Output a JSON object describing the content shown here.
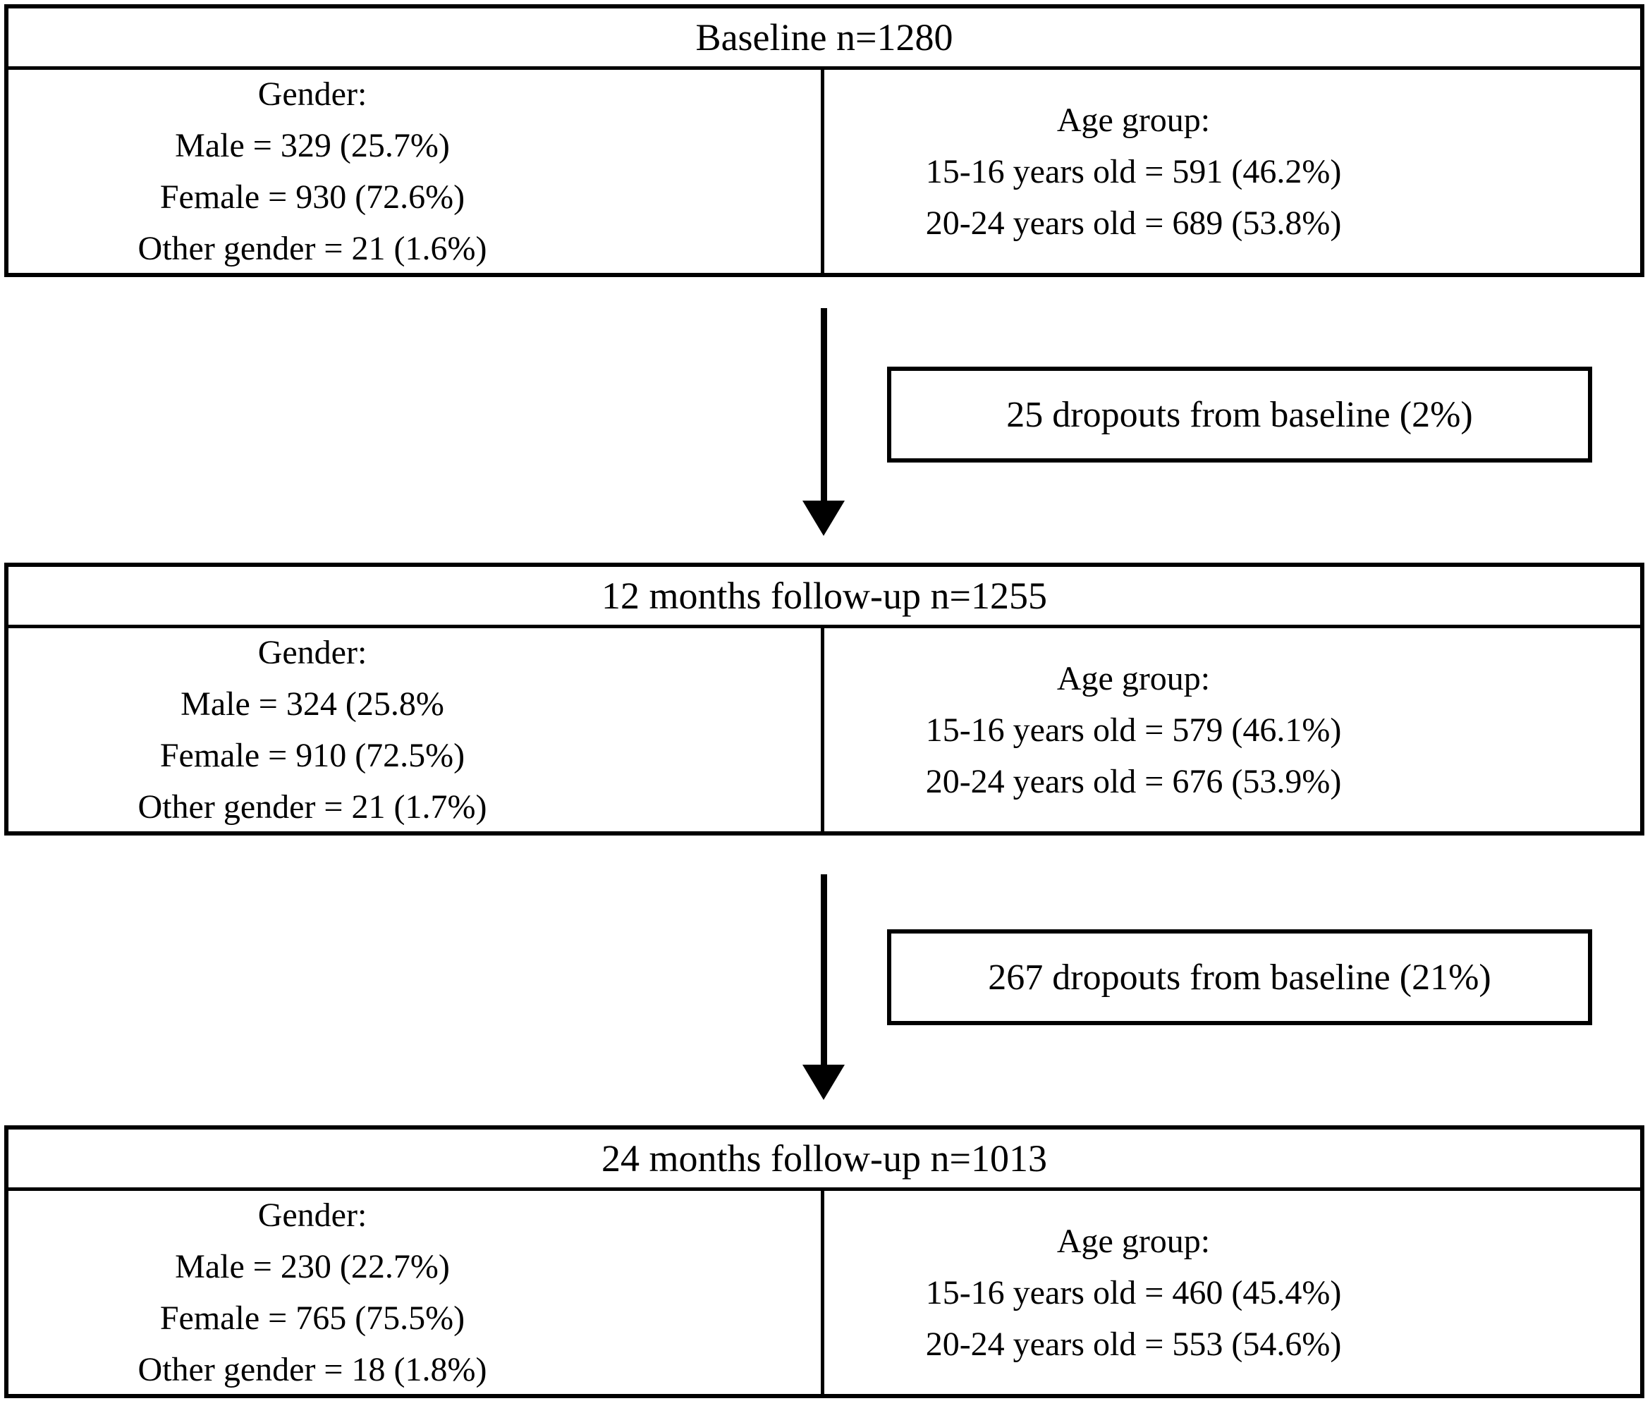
{
  "colors": {
    "border": "#000000",
    "background": "#ffffff",
    "text": "#000000"
  },
  "stages": [
    {
      "title": "Baseline n=1280",
      "gender": {
        "heading": "Gender:",
        "lines": [
          "Male = 329 (25.7%)",
          "Female = 930 (72.6%)",
          "Other gender = 21 (1.6%)"
        ]
      },
      "age": {
        "heading": "Age group:",
        "lines": [
          "15-16 years old = 591 (46.2%)",
          "20-24 years old = 689 (53.8%)"
        ]
      }
    },
    {
      "title": "12 months follow-up n=1255",
      "gender": {
        "heading": "Gender:",
        "lines": [
          "Male = 324 (25.8%",
          "Female = 910 (72.5%)",
          "Other gender = 21 (1.7%)"
        ]
      },
      "age": {
        "heading": "Age group:",
        "lines": [
          "15-16 years old = 579 (46.1%)",
          "20-24 years old = 676 (53.9%)"
        ]
      }
    },
    {
      "title": "24 months follow-up n=1013",
      "gender": {
        "heading": "Gender:",
        "lines": [
          "Male = 230 (22.7%)",
          "Female = 765 (75.5%)",
          "Other gender = 18 (1.8%)"
        ]
      },
      "age": {
        "heading": "Age group:",
        "lines": [
          "15-16 years old = 460 (45.4%)",
          "20-24 years old = 553 (54.6%)"
        ]
      }
    }
  ],
  "dropouts": [
    {
      "label": "25 dropouts from baseline (2%)"
    },
    {
      "label": "267 dropouts from baseline (21%)"
    }
  ]
}
